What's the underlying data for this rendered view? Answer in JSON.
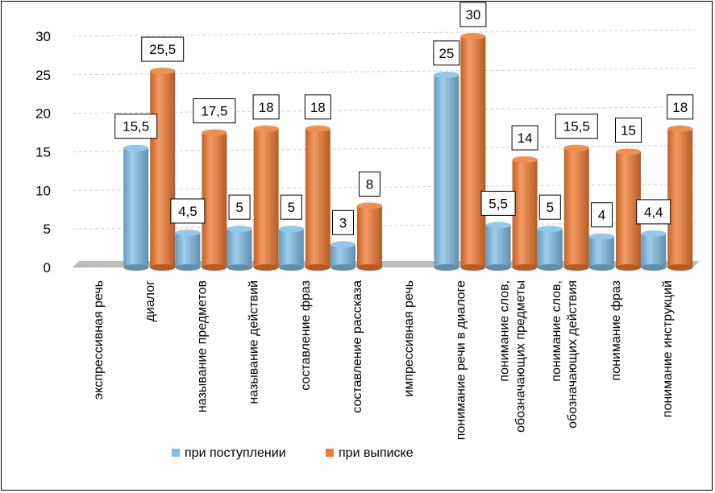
{
  "chart_data": {
    "type": "bar",
    "title": "",
    "xlabel": "",
    "ylabel": "",
    "ylim": [
      0,
      30
    ],
    "yticks": [
      "0",
      "5",
      "10",
      "15",
      "20",
      "25",
      "30"
    ],
    "categories": [
      [
        "экспрессивная речь"
      ],
      [
        "диалог"
      ],
      [
        "называние предметов"
      ],
      [
        "называние действий"
      ],
      [
        "составление фраз"
      ],
      [
        "составление рассказа"
      ],
      [
        "импрессивная речь"
      ],
      [
        "понимание речи в диалоге"
      ],
      [
        "понимание слов,",
        "обозначающих предметы"
      ],
      [
        "понимание слов,",
        "обозначающих действия"
      ],
      [
        "понимание фраз"
      ],
      [
        "понимание инструкций"
      ]
    ],
    "series": [
      {
        "name": "при поступлении",
        "color": "#7fbfe6",
        "values": [
          null,
          15.5,
          4.5,
          5,
          5,
          3,
          null,
          25,
          5.5,
          5,
          4,
          4.4
        ],
        "labels": [
          "",
          "15,5",
          "4,5",
          "5",
          "5",
          "3",
          "",
          "25",
          "5,5",
          "5",
          "4",
          "4,4"
        ]
      },
      {
        "name": "при выписке",
        "color": "#f07a30",
        "values": [
          null,
          25.5,
          17.5,
          18,
          18,
          8,
          null,
          30,
          14,
          15.5,
          15,
          18
        ],
        "labels": [
          "",
          "25,5",
          "17,5",
          "18",
          "18",
          "8",
          "",
          "30",
          "14",
          "15,5",
          "15",
          "18"
        ]
      }
    ],
    "legend_position": "bottom",
    "grid": true
  }
}
